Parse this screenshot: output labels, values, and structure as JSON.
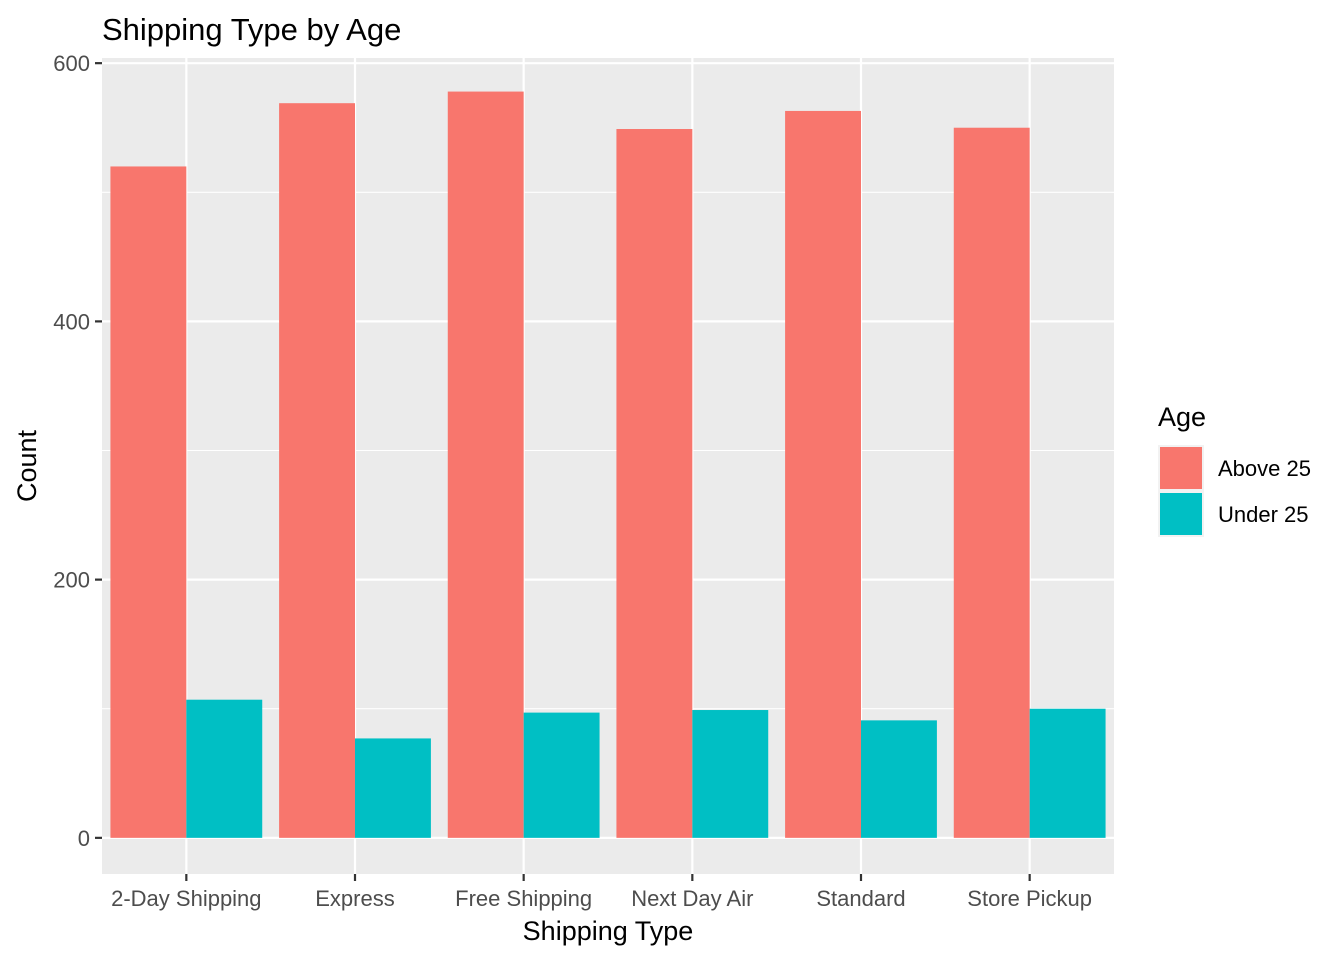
{
  "chart_data": {
    "type": "bar",
    "title": "Shipping Type by Age",
    "xlabel": "Shipping Type",
    "ylabel": "Count",
    "categories": [
      "2-Day Shipping",
      "Express",
      "Free Shipping",
      "Next Day Air",
      "Standard",
      "Store Pickup"
    ],
    "series": [
      {
        "name": "Above 25",
        "color": "#F8766D",
        "values": [
          520,
          569,
          578,
          549,
          563,
          550
        ]
      },
      {
        "name": "Under 25",
        "color": "#00BFC4",
        "values": [
          107,
          77,
          97,
          99,
          91,
          100
        ]
      }
    ],
    "ylim": [
      -28,
      604
    ],
    "yticks": [
      0,
      200,
      400,
      600
    ],
    "grid": true,
    "panel_background": "#EBEBEB",
    "grid_color": "#FFFFFF",
    "legend": {
      "title": "Age",
      "position": "right"
    }
  }
}
